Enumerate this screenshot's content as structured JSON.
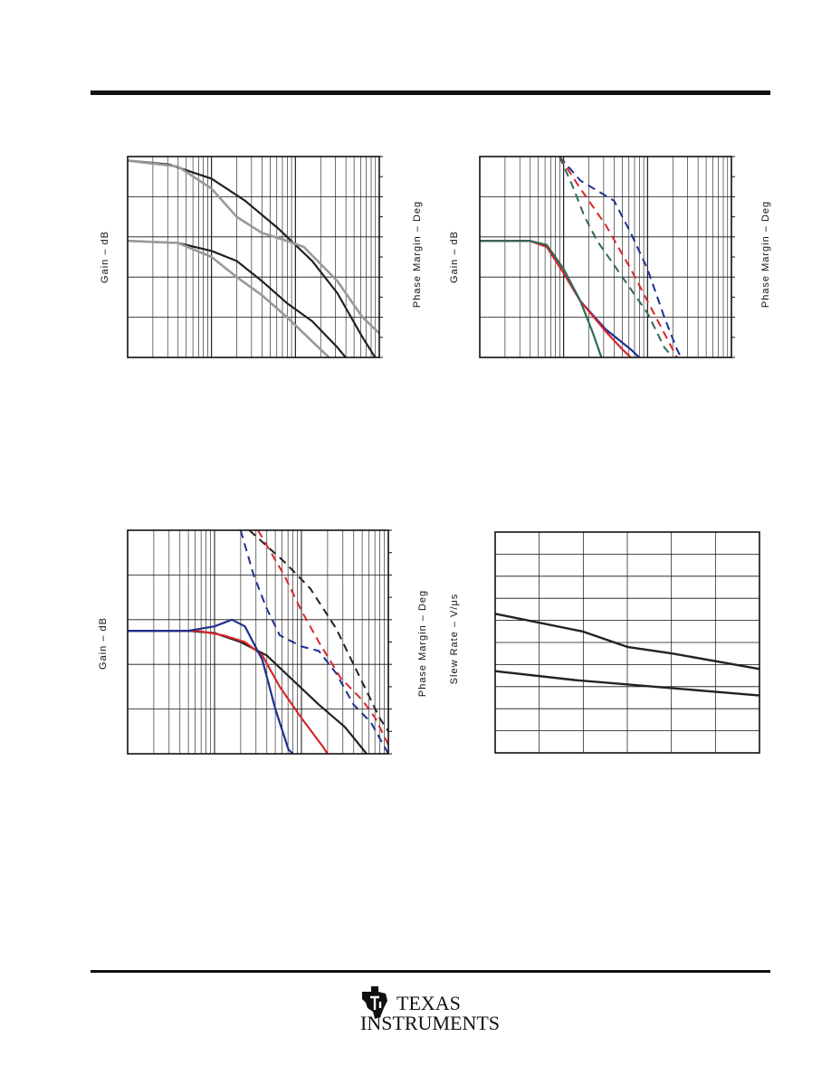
{
  "charts": [
    {
      "y_left": "Gain – dB",
      "y_right": "Phase Margin – Deg"
    },
    {
      "y_left": "Gain – dB",
      "y_right": "Phase Margin – Deg"
    },
    {
      "y_left": "Gain – dB",
      "y_right": "Phase Margin – Deg"
    },
    {
      "y_left": "Slew Rate – V/μs"
    }
  ],
  "footer": {
    "logo_line1": "TEXAS",
    "logo_line2": "INSTRUMENTS"
  },
  "chart_data": [
    {
      "type": "line",
      "x_scale": "log",
      "x_decades": 3,
      "grid": true,
      "series": [
        {
          "color": "#222222",
          "width": 2.2,
          "dash": "",
          "points": [
            [
              0,
              0.02
            ],
            [
              0.5,
              0.04
            ],
            [
              1.0,
              0.11
            ],
            [
              1.4,
              0.22
            ],
            [
              1.8,
              0.36
            ],
            [
              2.2,
              0.52
            ],
            [
              2.5,
              0.68
            ],
            [
              2.8,
              0.9
            ],
            [
              2.95,
              1.0
            ]
          ]
        },
        {
          "color": "#999999",
          "width": 2.6,
          "dash": "",
          "points": [
            [
              0,
              0.02
            ],
            [
              0.6,
              0.05
            ],
            [
              1.0,
              0.16
            ],
            [
              1.3,
              0.3
            ],
            [
              1.6,
              0.38
            ],
            [
              1.9,
              0.42
            ],
            [
              2.1,
              0.45
            ],
            [
              2.5,
              0.62
            ],
            [
              2.8,
              0.8
            ],
            [
              3.0,
              0.88
            ]
          ]
        },
        {
          "color": "#222222",
          "width": 2.2,
          "dash": "",
          "points": [
            [
              0,
              0.42
            ],
            [
              0.6,
              0.43
            ],
            [
              1.0,
              0.47
            ],
            [
              1.3,
              0.52
            ],
            [
              1.6,
              0.62
            ],
            [
              1.9,
              0.73
            ],
            [
              2.2,
              0.82
            ],
            [
              2.5,
              0.95
            ],
            [
              2.6,
              1.0
            ]
          ]
        },
        {
          "color": "#999999",
          "width": 2.6,
          "dash": "",
          "points": [
            [
              0,
              0.42
            ],
            [
              0.6,
              0.43
            ],
            [
              1.0,
              0.5
            ],
            [
              1.3,
              0.6
            ],
            [
              1.6,
              0.69
            ],
            [
              1.9,
              0.8
            ],
            [
              2.1,
              0.88
            ],
            [
              2.3,
              0.96
            ],
            [
              2.4,
              1.0
            ]
          ]
        }
      ]
    },
    {
      "type": "line",
      "x_scale": "log",
      "x_decades": 3,
      "grid": true,
      "series": [
        {
          "color": "#1f2f8f",
          "width": 2.2,
          "dash": "",
          "points": [
            [
              0,
              0.42
            ],
            [
              0.6,
              0.42
            ],
            [
              0.8,
              0.45
            ],
            [
              1.0,
              0.58
            ],
            [
              1.2,
              0.72
            ],
            [
              1.5,
              0.86
            ],
            [
              1.8,
              0.96
            ],
            [
              1.9,
              1.0
            ]
          ]
        },
        {
          "color": "#d8262b",
          "width": 2.2,
          "dash": "",
          "points": [
            [
              0,
              0.42
            ],
            [
              0.6,
              0.42
            ],
            [
              0.8,
              0.45
            ],
            [
              1.0,
              0.58
            ],
            [
              1.2,
              0.72
            ],
            [
              1.5,
              0.87
            ],
            [
              1.7,
              0.96
            ],
            [
              1.8,
              1.0
            ]
          ]
        },
        {
          "color": "#2f6a55",
          "width": 2.2,
          "dash": "",
          "points": [
            [
              0,
              0.42
            ],
            [
              0.6,
              0.42
            ],
            [
              0.8,
              0.44
            ],
            [
              1.0,
              0.56
            ],
            [
              1.2,
              0.72
            ],
            [
              1.35,
              0.88
            ],
            [
              1.45,
              1.0
            ]
          ]
        },
        {
          "color": "#1f2f8f",
          "width": 2.0,
          "dash": "9,6",
          "points": [
            [
              0.95,
              0.0
            ],
            [
              1.2,
              0.12
            ],
            [
              1.6,
              0.22
            ],
            [
              1.8,
              0.38
            ],
            [
              2.0,
              0.56
            ],
            [
              2.2,
              0.8
            ],
            [
              2.35,
              0.96
            ],
            [
              2.4,
              1.0
            ]
          ]
        },
        {
          "color": "#d8262b",
          "width": 2.0,
          "dash": "9,6",
          "points": [
            [
              0.95,
              0.0
            ],
            [
              1.2,
              0.16
            ],
            [
              1.5,
              0.34
            ],
            [
              1.8,
              0.56
            ],
            [
              2.0,
              0.72
            ],
            [
              2.2,
              0.88
            ],
            [
              2.35,
              1.0
            ]
          ]
        },
        {
          "color": "#2f6a55",
          "width": 2.0,
          "dash": "9,6",
          "points": [
            [
              0.95,
              0.0
            ],
            [
              1.1,
              0.14
            ],
            [
              1.25,
              0.3
            ],
            [
              1.4,
              0.42
            ],
            [
              1.6,
              0.54
            ],
            [
              1.8,
              0.66
            ],
            [
              2.0,
              0.78
            ],
            [
              2.2,
              0.95
            ],
            [
              2.3,
              1.0
            ]
          ]
        }
      ]
    },
    {
      "type": "line",
      "x_scale": "log",
      "x_decades": 3,
      "grid": true,
      "series": [
        {
          "color": "#222222",
          "width": 2.2,
          "dash": "",
          "points": [
            [
              0,
              0.45
            ],
            [
              0.7,
              0.45
            ],
            [
              1.0,
              0.46
            ],
            [
              1.3,
              0.5
            ],
            [
              1.6,
              0.56
            ],
            [
              1.9,
              0.67
            ],
            [
              2.2,
              0.78
            ],
            [
              2.5,
              0.88
            ],
            [
              2.75,
              1.0
            ]
          ]
        },
        {
          "color": "#d8262b",
          "width": 2.2,
          "dash": "",
          "points": [
            [
              0,
              0.45
            ],
            [
              0.8,
              0.45
            ],
            [
              1.1,
              0.47
            ],
            [
              1.35,
              0.5
            ],
            [
              1.55,
              0.56
            ],
            [
              1.75,
              0.7
            ],
            [
              2.0,
              0.84
            ],
            [
              2.25,
              0.97
            ],
            [
              2.3,
              1.0
            ]
          ]
        },
        {
          "color": "#1f2f8f",
          "width": 2.2,
          "dash": "",
          "points": [
            [
              0,
              0.45
            ],
            [
              0.7,
              0.45
            ],
            [
              1.0,
              0.43
            ],
            [
              1.2,
              0.4
            ],
            [
              1.35,
              0.43
            ],
            [
              1.55,
              0.58
            ],
            [
              1.7,
              0.8
            ],
            [
              1.85,
              0.98
            ],
            [
              1.9,
              1.0
            ]
          ]
        },
        {
          "color": "#222222",
          "width": 2.0,
          "dash": "9,6",
          "points": [
            [
              1.4,
              0.0
            ],
            [
              1.8,
              0.14
            ],
            [
              2.1,
              0.26
            ],
            [
              2.4,
              0.44
            ],
            [
              2.6,
              0.6
            ],
            [
              2.8,
              0.76
            ],
            [
              2.9,
              0.84
            ],
            [
              3.0,
              0.9
            ]
          ]
        },
        {
          "color": "#d8262b",
          "width": 2.0,
          "dash": "9,6",
          "points": [
            [
              1.5,
              0.0
            ],
            [
              1.8,
              0.2
            ],
            [
              2.0,
              0.36
            ],
            [
              2.2,
              0.5
            ],
            [
              2.45,
              0.66
            ],
            [
              2.7,
              0.76
            ],
            [
              2.85,
              0.84
            ],
            [
              3.0,
              0.96
            ]
          ]
        },
        {
          "color": "#1f2f8f",
          "width": 2.0,
          "dash": "9,6",
          "points": [
            [
              1.3,
              0.0
            ],
            [
              1.45,
              0.2
            ],
            [
              1.6,
              0.35
            ],
            [
              1.75,
              0.47
            ],
            [
              2.0,
              0.52
            ],
            [
              2.2,
              0.54
            ],
            [
              2.4,
              0.64
            ],
            [
              2.6,
              0.78
            ],
            [
              2.8,
              0.86
            ],
            [
              3.0,
              1.0
            ]
          ]
        }
      ]
    },
    {
      "type": "line",
      "x_scale": "linear",
      "grid": true,
      "series": [
        {
          "color": "#222222",
          "width": 2.4,
          "dash": "",
          "points": [
            [
              0,
              0.63
            ],
            [
              0.3,
              0.67
            ],
            [
              0.6,
              0.7
            ],
            [
              1.0,
              0.74
            ]
          ]
        },
        {
          "color": "#222222",
          "width": 2.4,
          "dash": "",
          "points": [
            [
              0,
              0.37
            ],
            [
              0.33,
              0.45
            ],
            [
              0.5,
              0.52
            ],
            [
              0.67,
              0.55
            ],
            [
              1.0,
              0.62
            ]
          ]
        }
      ]
    }
  ]
}
